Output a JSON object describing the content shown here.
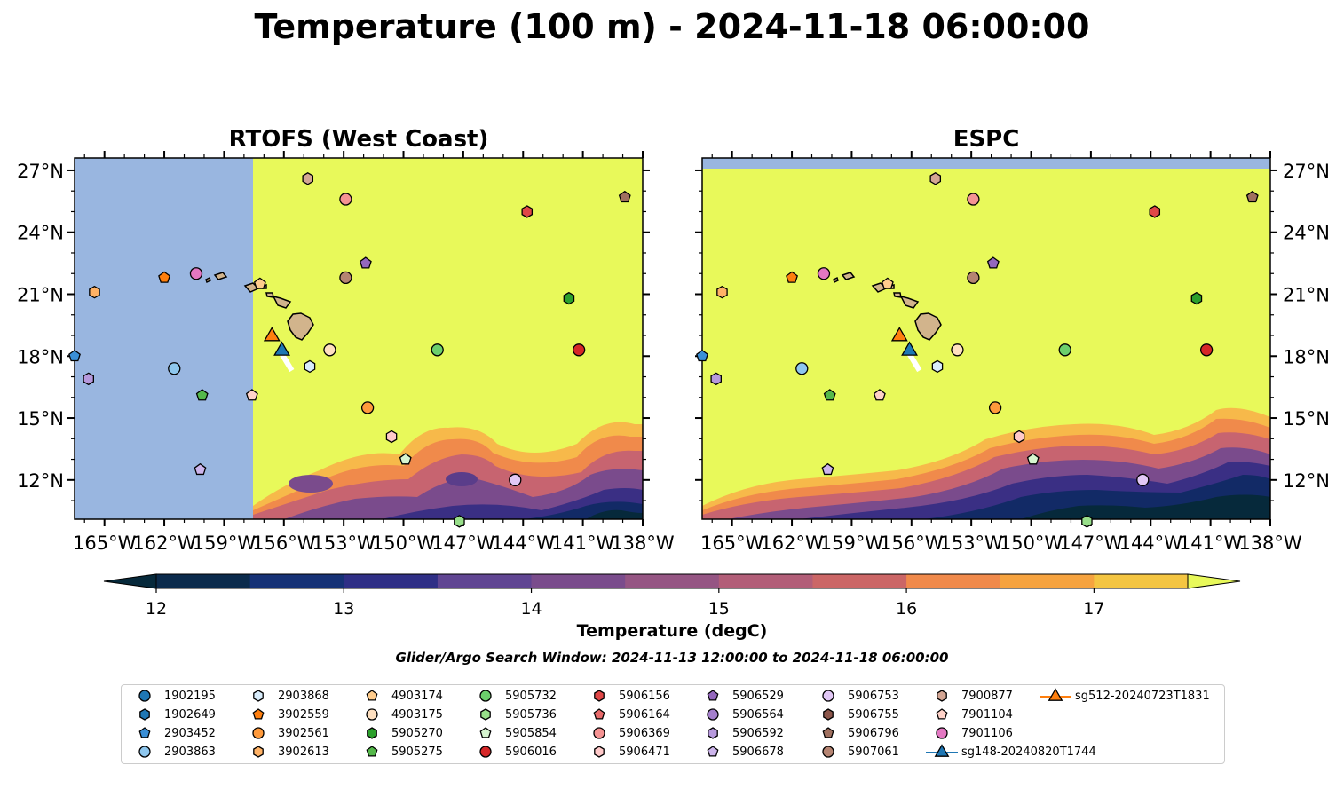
{
  "title": "Temperature (100 m) - 2024-11-18 06:00:00",
  "panels": [
    {
      "title": "RTOFS (West Coast)"
    },
    {
      "title": "ESPC"
    }
  ],
  "map": {
    "lon_range": [
      -166.5,
      -138
    ],
    "lat_range": [
      10.1,
      27.6
    ],
    "lon_ticks": [
      "165°W",
      "162°W",
      "159°W",
      "156°W",
      "153°W",
      "150°W",
      "147°W",
      "144°W",
      "141°W",
      "138°W"
    ],
    "lat_ticks": [
      "27°N",
      "24°N",
      "21°N",
      "18°N",
      "15°N",
      "12°N"
    ],
    "colors": {
      "land": "#d2b48c",
      "no_data": "#99b6e0",
      "warm": "#e8f95a",
      "cold": "#06293b"
    }
  },
  "colorbar": {
    "label": "Temperature (degC)",
    "ticks": [
      "12",
      "13",
      "14",
      "15",
      "16",
      "17"
    ],
    "range": [
      11.75,
      17.5
    ],
    "extend": "both"
  },
  "search_window": "Glider/Argo Search Window: 2024-11-13 12:00:00 to 2024-11-18 06:00:00",
  "floats": [
    {
      "id": "1902195",
      "marker": "circle",
      "color": "#1f77b4"
    },
    {
      "id": "1902649",
      "marker": "hexagon",
      "color": "#1f77b4"
    },
    {
      "id": "2903452",
      "marker": "pentagon",
      "color": "#3a8fd6",
      "lon": -166.5,
      "lat": 18.0
    },
    {
      "id": "2903863",
      "marker": "circle",
      "color": "#8ec7ee",
      "lon": -161.5,
      "lat": 17.4
    },
    {
      "id": "2903868",
      "marker": "hexagon",
      "color": "#d8ecfb",
      "lon": -154.7,
      "lat": 17.5
    },
    {
      "id": "3902559",
      "marker": "pentagon",
      "color": "#ff7f0e",
      "lon": -162.0,
      "lat": 21.8
    },
    {
      "id": "3902561",
      "marker": "circle",
      "color": "#ff9a3c",
      "lon": -151.8,
      "lat": 15.5
    },
    {
      "id": "3902613",
      "marker": "hexagon",
      "color": "#ffb266",
      "lon": -165.5,
      "lat": 21.1
    },
    {
      "id": "4903174",
      "marker": "pentagon",
      "color": "#ffcc8c",
      "lon": -157.2,
      "lat": 21.5
    },
    {
      "id": "4903175",
      "marker": "circle",
      "color": "#ffe0c0",
      "lon": -153.7,
      "lat": 18.3
    },
    {
      "id": "5905270",
      "marker": "hexagon",
      "color": "#2ca02c",
      "lon": -141.7,
      "lat": 20.8
    },
    {
      "id": "5905275",
      "marker": "pentagon",
      "color": "#54b84a",
      "lon": -160.1,
      "lat": 16.1
    },
    {
      "id": "5905732",
      "marker": "circle",
      "color": "#6ccf6c",
      "lon": -148.3,
      "lat": 18.3
    },
    {
      "id": "5905736",
      "marker": "hexagon",
      "color": "#98df8a",
      "lon": -147.2,
      "lat": 10.0
    },
    {
      "id": "5905854",
      "marker": "pentagon",
      "color": "#d6f5d0",
      "lon": -149.9,
      "lat": 13.0
    },
    {
      "id": "5906016",
      "marker": "circle",
      "color": "#d62728",
      "lon": -141.2,
      "lat": 18.3
    },
    {
      "id": "5906156",
      "marker": "hexagon",
      "color": "#e04747",
      "lon": -143.8,
      "lat": 25.0
    },
    {
      "id": "5906164",
      "marker": "pentagon",
      "color": "#e86a6a"
    },
    {
      "id": "5906369",
      "marker": "circle",
      "color": "#f59393",
      "lon": -152.9,
      "lat": 25.6
    },
    {
      "id": "5906471",
      "marker": "hexagon",
      "color": "#ffc9c9",
      "lon": -150.6,
      "lat": 14.1
    },
    {
      "id": "5906529",
      "marker": "pentagon",
      "color": "#9467bd",
      "lon": -151.9,
      "lat": 22.5
    },
    {
      "id": "5906564",
      "marker": "circle",
      "color": "#a47fcc"
    },
    {
      "id": "5906592",
      "marker": "hexagon",
      "color": "#b799dd",
      "lon": -165.8,
      "lat": 16.9
    },
    {
      "id": "5906678",
      "marker": "pentagon",
      "color": "#cdb5ec",
      "lon": -160.2,
      "lat": 12.5
    },
    {
      "id": "5906753",
      "marker": "circle",
      "color": "#e2c8f6",
      "lon": -144.4,
      "lat": 12.0
    },
    {
      "id": "5906755",
      "marker": "hexagon",
      "color": "#8c564b"
    },
    {
      "id": "5906796",
      "marker": "pentagon",
      "color": "#a0705f",
      "lon": -138.9,
      "lat": 25.7
    },
    {
      "id": "5907061",
      "marker": "circle",
      "color": "#b58472",
      "lon": -152.9,
      "lat": 21.8
    },
    {
      "id": "7900877",
      "marker": "hexagon",
      "color": "#d4a694",
      "lon": -154.8,
      "lat": 26.6
    },
    {
      "id": "7901104",
      "marker": "pentagon",
      "color": "#ffd2c8",
      "lon": -157.6,
      "lat": 16.1
    },
    {
      "id": "7901106",
      "marker": "circle",
      "color": "#e377c2",
      "lon": -160.4,
      "lat": 22.0
    }
  ],
  "gliders": [
    {
      "id": "sg148-20240820T1744",
      "marker": "triangle",
      "color": "#1f77b4",
      "lon": -156.1,
      "lat": 18.3
    },
    {
      "id": "sg512-20240723T1831",
      "marker": "triangle",
      "color": "#ff7f0e",
      "lon": -156.6,
      "lat": 19.0
    }
  ]
}
